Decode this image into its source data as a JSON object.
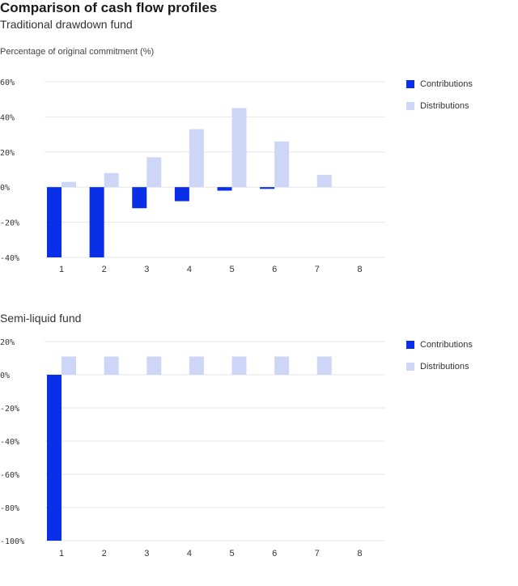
{
  "header": {
    "title": "Comparison of cash flow profiles",
    "subtitle": "Traditional drawdown fund",
    "ylabel": "Percentage of original commitment  (%)",
    "subtitle2": "Semi-liquid fund"
  },
  "colors": {
    "contributions": "#0a2fe8",
    "distributions": "#cdd6f6",
    "grid": "#e6e6e6"
  },
  "legend": {
    "contributions": "Contributions",
    "distributions": "Distributions"
  },
  "chart_data": [
    {
      "type": "bar",
      "title": "Traditional drawdown fund",
      "ylabel": "Percentage of original commitment  (%)",
      "categories": [
        "1",
        "2",
        "3",
        "4",
        "5",
        "6",
        "7",
        "8"
      ],
      "ylim": [
        -40,
        60
      ],
      "yticks": [
        60,
        40,
        20,
        0,
        -20,
        -40
      ],
      "ytick_labels": [
        "60%",
        "40%",
        "20%",
        "0%",
        "-20%",
        "-40%"
      ],
      "series": [
        {
          "name": "Contributions",
          "values": [
            -40,
            -40,
            -12,
            -8,
            -2,
            -1,
            0,
            0
          ]
        },
        {
          "name": "Distributions",
          "values": [
            3,
            8,
            17,
            33,
            45,
            26,
            7,
            0
          ]
        }
      ],
      "legend_position": "top-right"
    },
    {
      "type": "bar",
      "title": "Semi-liquid fund",
      "categories": [
        "1",
        "2",
        "3",
        "4",
        "5",
        "6",
        "7",
        "8"
      ],
      "ylim": [
        -100,
        20
      ],
      "yticks": [
        20,
        0,
        -20,
        -40,
        -60,
        -80,
        -100
      ],
      "ytick_labels": [
        "20%",
        "0%",
        "-20%",
        "-40%",
        "-60%",
        "-80%",
        "-100%"
      ],
      "series": [
        {
          "name": "Contributions",
          "values": [
            -100,
            0,
            0,
            0,
            0,
            0,
            0,
            0
          ]
        },
        {
          "name": "Distributions",
          "values": [
            11,
            11,
            11,
            11,
            11,
            11,
            11,
            0
          ]
        }
      ],
      "legend_position": "top-right"
    }
  ]
}
